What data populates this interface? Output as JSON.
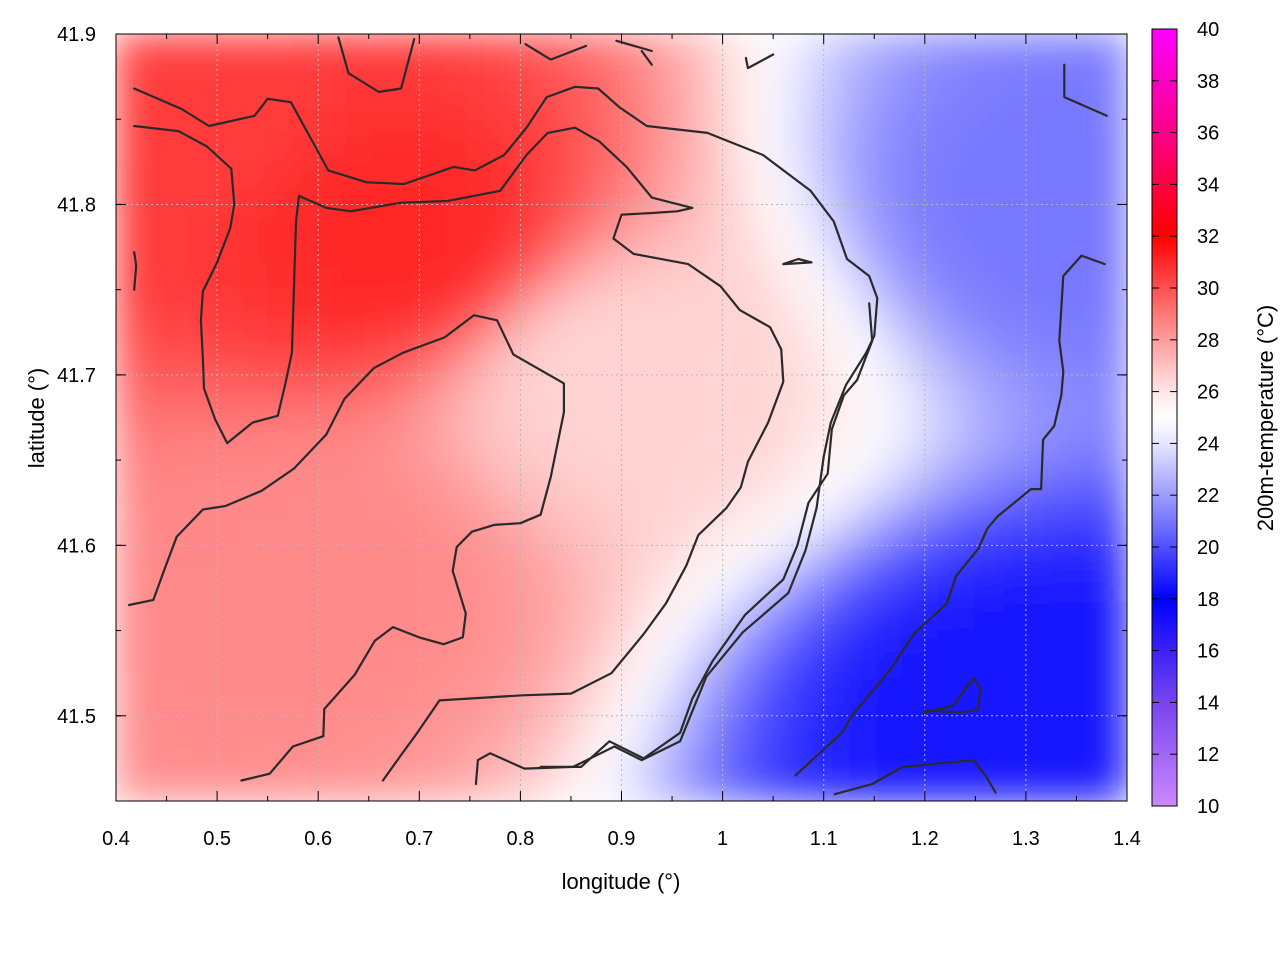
{
  "chart_data": {
    "type": "heatmap",
    "title": "",
    "xlabel": "longitude (°)",
    "ylabel": "latitude (°)",
    "colorbar_label": "200m-temperature (°C)",
    "xlim": [
      0.4,
      1.4
    ],
    "ylim": [
      41.45,
      41.9
    ],
    "x_ticks": [
      0.4,
      0.5,
      0.6,
      0.7,
      0.8,
      0.9,
      1.0,
      1.1,
      1.2,
      1.3,
      1.4
    ],
    "x_tick_labels": [
      "0.4",
      "0.5",
      "0.6",
      "0.7",
      "0.8",
      "0.9",
      "1",
      "1.1",
      "1.2",
      "1.3",
      "1.4"
    ],
    "y_ticks": [
      41.5,
      41.6,
      41.7,
      41.8,
      41.9
    ],
    "y_tick_labels": [
      "41.5",
      "41.6",
      "41.7",
      "41.8",
      "41.9"
    ],
    "colorbar_range": [
      10,
      40
    ],
    "colorbar_ticks": [
      10,
      12,
      14,
      16,
      18,
      20,
      22,
      24,
      26,
      28,
      30,
      32,
      34,
      36,
      38,
      40
    ],
    "colorbar_tick_labels": [
      "10",
      "12",
      "14",
      "16",
      "18",
      "20",
      "22",
      "24",
      "26",
      "28",
      "30",
      "32",
      "34",
      "36",
      "38",
      "40"
    ],
    "colormap": [
      {
        "value": 10,
        "color": "#cc88ff"
      },
      {
        "value": 14,
        "color": "#7744ee"
      },
      {
        "value": 18,
        "color": "#0000ff"
      },
      {
        "value": 21,
        "color": "#7777ff"
      },
      {
        "value": 24,
        "color": "#e6e6ff"
      },
      {
        "value": 25,
        "color": "#ffffff"
      },
      {
        "value": 26,
        "color": "#ffe6e6"
      },
      {
        "value": 29,
        "color": "#ff7777"
      },
      {
        "value": 32,
        "color": "#ff0000"
      },
      {
        "value": 36,
        "color": "#ff0088"
      },
      {
        "value": 40,
        "color": "#ff00ff"
      }
    ],
    "grid": true,
    "field_description_points": [
      {
        "lon": 0.45,
        "lat": 41.85,
        "t": 30.5
      },
      {
        "lon": 0.68,
        "lat": 41.78,
        "t": 31.0
      },
      {
        "lon": 0.6,
        "lat": 41.58,
        "t": 28.5
      },
      {
        "lon": 0.9,
        "lat": 41.7,
        "t": 26.5
      },
      {
        "lon": 1.3,
        "lat": 41.5,
        "t": 18.5
      },
      {
        "lon": 1.35,
        "lat": 41.8,
        "t": 21.0
      }
    ],
    "contours": [
      {
        "points": [
          [
            0.418,
            41.868
          ],
          [
            0.465,
            41.856
          ],
          [
            0.492,
            41.846
          ],
          [
            0.537,
            41.852
          ],
          [
            0.55,
            41.862
          ],
          [
            0.573,
            41.86
          ],
          [
            0.61,
            41.82
          ],
          [
            0.648,
            41.813
          ],
          [
            0.685,
            41.812
          ],
          [
            0.734,
            41.822
          ],
          [
            0.755,
            41.82
          ],
          [
            0.784,
            41.829
          ],
          [
            0.806,
            41.845
          ],
          [
            0.826,
            41.863
          ],
          [
            0.854,
            41.869
          ],
          [
            0.877,
            41.868
          ],
          [
            0.898,
            41.857
          ],
          [
            0.925,
            41.846
          ],
          [
            0.985,
            41.842
          ],
          [
            1.04,
            41.829
          ],
          [
            1.087,
            41.808
          ],
          [
            1.11,
            41.79
          ],
          [
            1.123,
            41.768
          ],
          [
            1.145,
            41.758
          ],
          [
            1.153,
            41.745
          ],
          [
            1.15,
            41.723
          ],
          [
            1.142,
            41.713
          ],
          [
            1.122,
            41.694
          ],
          [
            1.107,
            41.672
          ],
          [
            1.1,
            41.652
          ],
          [
            1.093,
            41.622
          ],
          [
            1.082,
            41.597
          ],
          [
            1.065,
            41.572
          ],
          [
            1.02,
            41.549
          ],
          [
            0.984,
            41.523
          ],
          [
            0.958,
            41.485
          ],
          [
            0.92,
            41.474
          ],
          [
            0.893,
            41.482
          ],
          [
            0.852,
            41.47
          ],
          [
            0.804,
            41.469
          ],
          [
            0.77,
            41.478
          ],
          [
            0.758,
            41.474
          ],
          [
            0.756,
            41.46
          ]
        ]
      },
      {
        "points": [
          [
            0.418,
            41.846
          ],
          [
            0.462,
            41.843
          ],
          [
            0.49,
            41.834
          ],
          [
            0.514,
            41.821
          ],
          [
            0.517,
            41.8
          ],
          [
            0.513,
            41.786
          ],
          [
            0.5,
            41.766
          ],
          [
            0.486,
            41.749
          ],
          [
            0.484,
            41.732
          ],
          [
            0.486,
            41.709
          ],
          [
            0.487,
            41.692
          ],
          [
            0.498,
            41.674
          ],
          [
            0.51,
            41.66
          ],
          [
            0.535,
            41.672
          ],
          [
            0.56,
            41.676
          ],
          [
            0.568,
            41.696
          ],
          [
            0.574,
            41.713
          ],
          [
            0.576,
            41.75
          ],
          [
            0.578,
            41.79
          ],
          [
            0.581,
            41.805
          ],
          [
            0.608,
            41.798
          ],
          [
            0.632,
            41.796
          ],
          [
            0.682,
            41.801
          ],
          [
            0.728,
            41.802
          ],
          [
            0.78,
            41.808
          ],
          [
            0.806,
            41.829
          ],
          [
            0.827,
            41.842
          ],
          [
            0.854,
            41.845
          ],
          [
            0.878,
            41.837
          ],
          [
            0.905,
            41.822
          ],
          [
            0.93,
            41.804
          ],
          [
            0.97,
            41.798
          ],
          [
            0.955,
            41.796
          ],
          [
            0.93,
            41.795
          ],
          [
            0.9,
            41.794
          ],
          [
            0.892,
            41.78
          ],
          [
            0.912,
            41.771
          ],
          [
            0.966,
            41.765
          ],
          [
            0.998,
            41.752
          ],
          [
            1.017,
            41.738
          ],
          [
            1.047,
            41.728
          ],
          [
            1.058,
            41.715
          ],
          [
            1.06,
            41.696
          ],
          [
            1.045,
            41.672
          ],
          [
            1.025,
            41.649
          ],
          [
            1.018,
            41.634
          ],
          [
            1.004,
            41.622
          ],
          [
            0.976,
            41.606
          ],
          [
            0.964,
            41.588
          ],
          [
            0.944,
            41.566
          ],
          [
            0.922,
            41.548
          ],
          [
            0.89,
            41.525
          ],
          [
            0.85,
            41.513
          ],
          [
            0.802,
            41.512
          ],
          [
            0.72,
            41.509
          ],
          [
            0.698,
            41.49
          ],
          [
            0.682,
            41.477
          ],
          [
            0.664,
            41.462
          ]
        ]
      },
      {
        "points": [
          [
            0.413,
            41.565
          ],
          [
            0.437,
            41.568
          ],
          [
            0.448,
            41.586
          ],
          [
            0.46,
            41.605
          ],
          [
            0.486,
            41.621
          ],
          [
            0.508,
            41.623
          ],
          [
            0.544,
            41.632
          ],
          [
            0.576,
            41.645
          ],
          [
            0.608,
            41.665
          ],
          [
            0.626,
            41.686
          ],
          [
            0.655,
            41.704
          ],
          [
            0.684,
            41.713
          ],
          [
            0.725,
            41.722
          ],
          [
            0.754,
            41.735
          ],
          [
            0.777,
            41.732
          ],
          [
            0.793,
            41.712
          ],
          [
            0.843,
            41.695
          ],
          [
            0.843,
            41.678
          ],
          [
            0.83,
            41.64
          ],
          [
            0.82,
            41.618
          ],
          [
            0.8,
            41.613
          ],
          [
            0.774,
            41.612
          ],
          [
            0.752,
            41.608
          ],
          [
            0.737,
            41.599
          ],
          [
            0.733,
            41.585
          ],
          [
            0.746,
            41.56
          ],
          [
            0.743,
            41.546
          ],
          [
            0.724,
            41.542
          ],
          [
            0.7,
            41.546
          ],
          [
            0.674,
            41.552
          ],
          [
            0.656,
            41.544
          ],
          [
            0.636,
            41.524
          ],
          [
            0.606,
            41.504
          ],
          [
            0.605,
            41.488
          ],
          [
            0.575,
            41.482
          ],
          [
            0.552,
            41.466
          ],
          [
            0.524,
            41.462
          ]
        ]
      },
      {
        "points": [
          [
            1.145,
            41.742
          ],
          [
            1.148,
            41.72
          ],
          [
            1.133,
            41.697
          ],
          [
            1.12,
            41.688
          ],
          [
            1.108,
            41.668
          ],
          [
            1.104,
            41.642
          ],
          [
            1.085,
            41.625
          ],
          [
            1.074,
            41.6
          ],
          [
            1.06,
            41.58
          ],
          [
            1.022,
            41.559
          ],
          [
            0.99,
            41.532
          ],
          [
            0.97,
            41.51
          ],
          [
            0.958,
            41.49
          ],
          [
            0.922,
            41.475
          ],
          [
            0.888,
            41.485
          ],
          [
            0.86,
            41.47
          ],
          [
            0.82,
            41.47
          ]
        ]
      },
      {
        "points": [
          [
            0.62,
            41.898
          ],
          [
            0.63,
            41.877
          ],
          [
            0.66,
            41.866
          ],
          [
            0.682,
            41.868
          ],
          [
            0.695,
            41.897
          ]
        ]
      },
      {
        "points": [
          [
            0.805,
            41.894
          ],
          [
            0.83,
            41.885
          ],
          [
            0.865,
            41.893
          ]
        ]
      },
      {
        "points": [
          [
            0.895,
            41.896
          ],
          [
            0.93,
            41.89
          ]
        ]
      },
      {
        "points": [
          [
            0.92,
            41.89
          ],
          [
            0.93,
            41.882
          ]
        ]
      },
      {
        "points": [
          [
            1.023,
            41.886
          ],
          [
            1.025,
            41.88
          ],
          [
            1.05,
            41.888
          ]
        ]
      },
      {
        "points": [
          [
            1.06,
            41.765
          ],
          [
            1.075,
            41.768
          ],
          [
            1.088,
            41.766
          ],
          [
            1.06,
            41.765
          ]
        ]
      },
      {
        "points": [
          [
            1.338,
            41.882
          ],
          [
            1.338,
            41.863
          ],
          [
            1.38,
            41.852
          ]
        ]
      },
      {
        "points": [
          [
            0.418,
            41.772
          ],
          [
            0.42,
            41.764
          ],
          [
            0.418,
            41.75
          ]
        ]
      },
      {
        "points": [
          [
            1.378,
            41.765
          ],
          [
            1.355,
            41.77
          ],
          [
            1.337,
            41.758
          ],
          [
            1.333,
            41.72
          ],
          [
            1.337,
            41.702
          ],
          [
            1.335,
            41.688
          ],
          [
            1.328,
            41.67
          ],
          [
            1.317,
            41.662
          ],
          [
            1.315,
            41.633
          ],
          [
            1.305,
            41.633
          ],
          [
            1.272,
            41.617
          ],
          [
            1.262,
            41.61
          ],
          [
            1.253,
            41.598
          ],
          [
            1.231,
            41.582
          ],
          [
            1.222,
            41.566
          ],
          [
            1.189,
            41.548
          ],
          [
            1.167,
            41.528
          ],
          [
            1.128,
            41.5
          ],
          [
            1.118,
            41.49
          ],
          [
            1.072,
            41.465
          ]
        ]
      },
      {
        "points": [
          [
            1.2,
            41.502
          ],
          [
            1.228,
            41.506
          ],
          [
            1.248,
            41.522
          ],
          [
            1.255,
            41.516
          ],
          [
            1.253,
            41.504
          ],
          [
            1.237,
            41.502
          ],
          [
            1.2,
            41.503
          ]
        ]
      },
      {
        "points": [
          [
            1.111,
            41.454
          ],
          [
            1.148,
            41.46
          ],
          [
            1.178,
            41.47
          ],
          [
            1.248,
            41.474
          ],
          [
            1.26,
            41.465
          ],
          [
            1.27,
            41.455
          ]
        ]
      }
    ]
  }
}
